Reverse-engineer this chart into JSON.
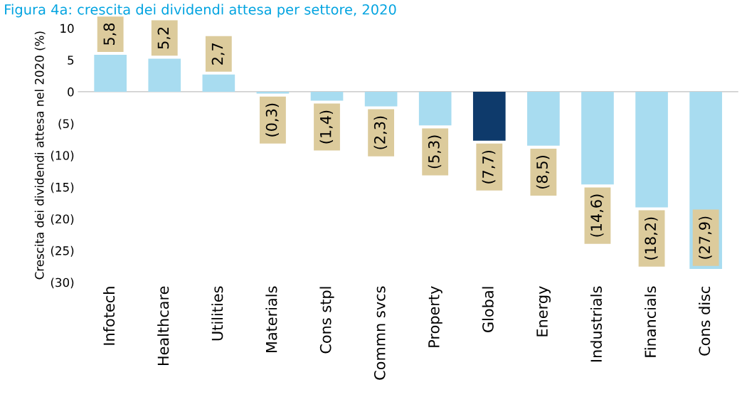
{
  "chart_data": {
    "type": "bar",
    "title": "Figura 4a: crescita dei dividendi attesa per settore, 2020",
    "ylabel": "Crescita dei dividendi attesa nel 2020 (%)",
    "categories": [
      "Infotech",
      "Healthcare",
      "Utilities",
      "Materials",
      "Cons stpl",
      "Commn svcs",
      "Property",
      "Global",
      "Energy",
      "Industrials",
      "Financials",
      "Cons disc"
    ],
    "values": [
      5.8,
      5.2,
      2.7,
      -0.3,
      -1.4,
      -2.3,
      -5.3,
      -7.7,
      -8.5,
      -14.6,
      -18.2,
      -27.9
    ],
    "colors": [
      "#a8dcf0",
      "#a8dcf0",
      "#a8dcf0",
      "#a8dcf0",
      "#a8dcf0",
      "#a8dcf0",
      "#a8dcf0",
      "#0e3a6b",
      "#a8dcf0",
      "#a8dcf0",
      "#a8dcf0",
      "#a8dcf0"
    ],
    "value_labels": [
      "5,8",
      "5,2",
      "2,7",
      "(0,3)",
      "(1,4)",
      "(2,3)",
      "(5,3)",
      "(7,7)",
      "(8,5)",
      "(14,6)",
      "(18,2)",
      "(27,9)"
    ],
    "ylim": [
      -30,
      10
    ],
    "yticks": [
      {
        "value": -30,
        "label": "(30)"
      },
      {
        "value": -25,
        "label": "(25)"
      },
      {
        "value": -20,
        "label": "(20)"
      },
      {
        "value": -15,
        "label": "(15)"
      },
      {
        "value": -10,
        "label": "(10)"
      },
      {
        "value": -5,
        "label": "(5)"
      },
      0,
      5,
      10
    ],
    "ref_lines": [
      {
        "axis": "y",
        "value": 0,
        "color": "#bfbfbf"
      }
    ]
  }
}
